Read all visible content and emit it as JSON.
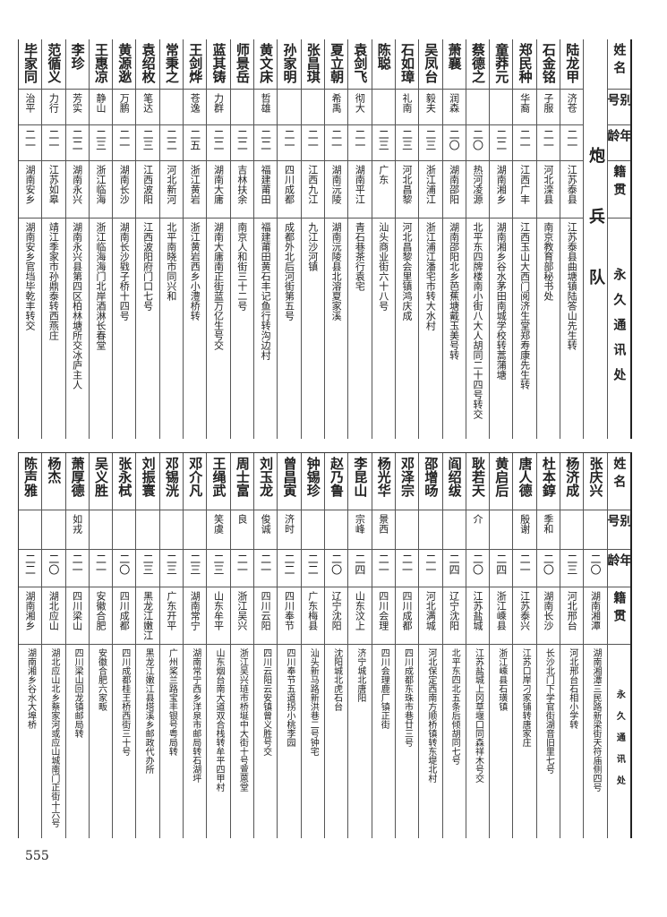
{
  "header": {
    "name": "姓名",
    "alias": "别号",
    "age": "年龄",
    "origin": "籍贯",
    "address": "永久通讯处"
  },
  "top_section_label": "炮兵队",
  "top_rows": [
    {
      "name": "陆龙甲",
      "alias": "济苍",
      "age": "二一",
      "origin": "江苏泰县",
      "address": "江苏泰县曲塘镇陆答山先生转"
    },
    {
      "name": "石金铭",
      "alias": "子服",
      "age": "二一",
      "origin": "河北滦县",
      "address": "南京教育部秘书处"
    },
    {
      "name": "郑民种",
      "alias": "华裔",
      "age": "二一",
      "origin": "江西广丰",
      "address": "江西玉山大西门阅济生堂郑寿康先生转"
    },
    {
      "name": "童莽元",
      "alias": "",
      "age": "二二",
      "origin": "湖南湘乡",
      "address": "湖南湘乡谷水茅田南城学校转蒿蒲塘"
    },
    {
      "name": "蔡德之",
      "alias": "",
      "age": "二〇",
      "origin": "热河凌源",
      "address": "北平东四牌楼南小街八大人胡同二十四号转交"
    },
    {
      "name": "萧襄",
      "alias": "润森",
      "age": "二〇",
      "origin": "湖南邵阳",
      "address": "湖南邵阳北乡芭蕉塘戴玉美号转"
    },
    {
      "name": "吴凤台",
      "alias": "毅夫",
      "age": "二三",
      "origin": "浙江浦江",
      "address": "浙江浦江潘宅市转大水村"
    },
    {
      "name": "石如璋",
      "alias": "礼南",
      "age": "二三",
      "origin": "河北昌黎",
      "address": "河北昌黎会里镇鸿庆成"
    },
    {
      "name": "陈聪",
      "alias": "",
      "age": "二三",
      "origin": "广东",
      "address": "汕头商业街六十八号"
    },
    {
      "name": "袁剑飞",
      "alias": "彻大",
      "age": "二一",
      "origin": "湖南平江",
      "address": "青石巷茶行袁宅"
    },
    {
      "name": "夏立朝",
      "alias": "希禹",
      "age": "二一",
      "origin": "湖南沅陵",
      "address": "湖南沅陵县北溶夏家溪"
    },
    {
      "name": "张昌琪",
      "alias": "",
      "age": "二一",
      "origin": "江西九江",
      "address": "九江沙河镇"
    },
    {
      "name": "孙家明",
      "alias": "",
      "age": "二一",
      "origin": "四川成都",
      "address": "成都外北后河街第五号"
    },
    {
      "name": "黄文床",
      "alias": "哲雄",
      "age": "二二",
      "origin": "福建莆田",
      "address": "福建莆田黄石丰记鱼行转沟边村"
    },
    {
      "name": "师景岳",
      "alias": "",
      "age": "二二",
      "origin": "吉林扶余",
      "address": "南京人和街三十二号"
    },
    {
      "name": "蓝其铸",
      "alias": "力群",
      "age": "二二",
      "origin": "湖南大庸",
      "address": "湖南大庸南正街蓝万亿生号交"
    },
    {
      "name": "王剑烨",
      "alias": "苍逸",
      "age": "二五",
      "origin": "浙江黄岩",
      "address": "浙江黄岩西乡小澧桥转"
    },
    {
      "name": "常秉之",
      "alias": "",
      "age": "二二",
      "origin": "河北新河",
      "address": "北平南晓市同兴和"
    },
    {
      "name": "袁绍枚",
      "alias": "笔达",
      "age": "二三",
      "origin": "江西波阳",
      "address": "江西波阳府门口七号"
    },
    {
      "name": "黄源逖",
      "alias": "万鹏",
      "age": "二一",
      "origin": "湖南长沙",
      "address": "湖南长沙戥子桥十四号"
    },
    {
      "name": "王惠凉",
      "alias": "静山",
      "age": "二三",
      "origin": "浙江临海",
      "address": "浙江临海海门北岸酒淋长春堂"
    },
    {
      "name": "李珍",
      "alias": "芳实",
      "age": "二二",
      "origin": "湖南永兴",
      "address": "湖南永兴县第四区柏林塘所交冰庐主人"
    },
    {
      "name": "范循义",
      "alias": "力行",
      "age": "二一",
      "origin": "江苏如皋",
      "address": "靖江季家市孙鼎泰转西燕庄"
    },
    {
      "name": "毕家同",
      "alias": "治平",
      "age": "二一",
      "origin": "湖南安乡",
      "address": "湖南安乡官垱毕乾丰转交"
    }
  ],
  "bottom_rows": [
    {
      "name": "张庆兴",
      "alias": "",
      "age": "二〇",
      "origin": "湖南湘潭",
      "address": "湖南湘潭三民路新梁街天符庙侧四号"
    },
    {
      "name": "杨济成",
      "alias": "",
      "age": "二三",
      "origin": "河北邢台",
      "address": "河北邢台石相小学转"
    },
    {
      "name": "杜本錞",
      "alias": "季和",
      "age": "二〇",
      "origin": "湖南长沙",
      "address": "长沙北门下学官街湖音旧里七号"
    },
    {
      "name": "唐人德",
      "alias": "殷谢",
      "age": "二一",
      "origin": "江苏泰兴",
      "address": "江苏口岸刁家铺转唐家庄"
    },
    {
      "name": "黄启后",
      "alias": "",
      "age": "二四",
      "origin": "浙江嵊县",
      "address": "浙江嵊县石璜镇"
    },
    {
      "name": "耿若天",
      "alias": "介",
      "age": "二〇",
      "origin": "江苏盐城",
      "address": "江苏盐城上冈草堰口同森祥木号交"
    },
    {
      "name": "阎绍绂",
      "alias": "",
      "age": "二四",
      "origin": "辽宁沈阳",
      "address": "北平东四北五条后倾胡同七号"
    },
    {
      "name": "邵增旸",
      "alias": "",
      "age": "二一",
      "origin": "河北满城",
      "address": "河北保定西南方顺桥镇转东堤北村"
    },
    {
      "name": "邓泽宗",
      "alias": "",
      "age": "二一",
      "origin": "四川成都",
      "address": "四川成都东珠市巷廿三号"
    },
    {
      "name": "杨光华",
      "alias": "景西",
      "age": "二一",
      "origin": "四川会理",
      "address": "四川会理鹿厂镇正街"
    },
    {
      "name": "李昆山",
      "alias": "宗峰",
      "age": "二四",
      "origin": "山东汶上",
      "address": "济宁城北唐阳"
    },
    {
      "name": "赵乃鲁",
      "alias": "",
      "age": "二〇",
      "origin": "辽宁沈阳",
      "address": "沈阳城北虎石台"
    },
    {
      "name": "钟锡珍",
      "alias": "",
      "age": "二二",
      "origin": "广东梅县",
      "address": "汕头新马路新洪巷二号钟宅"
    },
    {
      "name": "曾昌寅",
      "alias": "济时",
      "age": "二二",
      "origin": "四川奉节",
      "address": "四川奉节五道拐小桃李园"
    },
    {
      "name": "刘玉龙",
      "alias": "俊诚",
      "age": "二一",
      "origin": "四川云阳",
      "address": "四川云阳云安镇曾义胜号交"
    },
    {
      "name": "周士富",
      "alias": "良",
      "age": "二一",
      "origin": "浙江吴兴",
      "address": "浙江吴兴琏市桥埏中大街十号萱蒽堂"
    },
    {
      "name": "王绳武",
      "alias": "笑虞",
      "age": "二三",
      "origin": "山东牟平",
      "address": "山东烟台南大道双合栈转牟平四甲村"
    },
    {
      "name": "邓介凡",
      "alias": "",
      "age": "二三",
      "origin": "湖南常宁",
      "address": "湖南常宁西乡洋泉市邮局转石湖坪"
    },
    {
      "name": "邓锡洸",
      "alias": "",
      "age": "二三",
      "origin": "广东开平",
      "address": "广州桨兰路宝丰银号粤局转"
    },
    {
      "name": "刘振寰",
      "alias": "",
      "age": "二三",
      "origin": "黑龙江嫩江",
      "address": "黑龙江嫩江县塔溪乡邮政代办所"
    },
    {
      "name": "张永栻",
      "alias": "",
      "age": "二〇",
      "origin": "四川成都",
      "address": "四川成都桂王桥西街三十号"
    },
    {
      "name": "吴义胜",
      "alias": "",
      "age": "二一",
      "origin": "安徽合肥",
      "address": "安徽合肥六家畈"
    },
    {
      "name": "萧厚德",
      "alias": "如戎",
      "age": "二一",
      "origin": "四川梁山",
      "address": "四川梁山回龙镇邮局转"
    },
    {
      "name": "杨杰",
      "alias": "",
      "age": "二〇",
      "origin": "湖北应山",
      "address": "湖北应山北乡蔡家河或应山城南门正街十六号"
    },
    {
      "name": "陈声雅",
      "alias": "",
      "age": "二二",
      "origin": "湖南湘乡",
      "address": "湖南湘乡谷水大埠桥"
    }
  ],
  "page_number": "555"
}
